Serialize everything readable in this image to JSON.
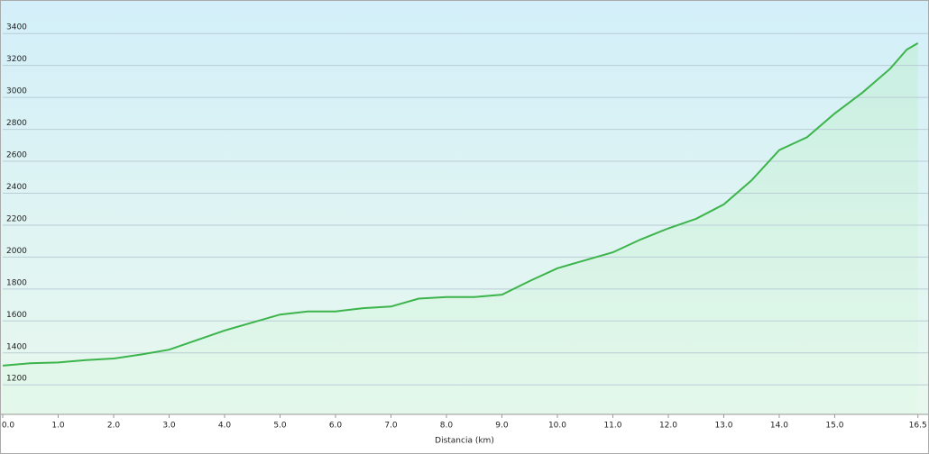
{
  "chart_data": {
    "type": "area",
    "x_label": "Distancia  (km)",
    "x": [
      0,
      0.5,
      1.0,
      1.5,
      2.0,
      2.5,
      3.0,
      3.5,
      4.0,
      4.5,
      5.0,
      5.5,
      6.0,
      6.5,
      7.0,
      7.5,
      8.0,
      8.5,
      9.0,
      9.5,
      10.0,
      10.5,
      11.0,
      11.5,
      12.0,
      12.5,
      13.0,
      13.5,
      14.0,
      14.5,
      15.0,
      15.5,
      16.0,
      16.3,
      16.5
    ],
    "series": [
      {
        "color": "#3cb44b",
        "values": [
          1320,
          1335,
          1340,
          1355,
          1365,
          1390,
          1420,
          1480,
          1540,
          1590,
          1640,
          1660,
          1660,
          1680,
          1690,
          1740,
          1750,
          1750,
          1765,
          1850,
          1930,
          1980,
          2030,
          2110,
          2180,
          2240,
          2330,
          2480,
          2670,
          2750,
          2900,
          3030,
          3180,
          3300,
          3340
        ]
      }
    ],
    "xlim": [
      0,
      16.7
    ],
    "ylim": [
      1015,
      3610
    ],
    "xticks": [
      {
        "value": 0,
        "label": "0.0"
      },
      {
        "value": 1,
        "label": "1.0"
      },
      {
        "value": 2,
        "label": "2.0"
      },
      {
        "value": 3,
        "label": "3.0"
      },
      {
        "value": 4,
        "label": "4.0"
      },
      {
        "value": 5,
        "label": "5.0"
      },
      {
        "value": 6,
        "label": "6.0"
      },
      {
        "value": 7,
        "label": "7.0"
      },
      {
        "value": 8,
        "label": "8.0"
      },
      {
        "value": 9,
        "label": "9.0"
      },
      {
        "value": 10,
        "label": "10.0"
      },
      {
        "value": 11,
        "label": "11.0"
      },
      {
        "value": 12,
        "label": "12.0"
      },
      {
        "value": 13,
        "label": "13.0"
      },
      {
        "value": 14,
        "label": "14.0"
      },
      {
        "value": 15,
        "label": "15.0"
      },
      16.5
    ],
    "yticks": [
      1200,
      1400,
      1600,
      1800,
      2000,
      2200,
      2400,
      2600,
      2800,
      3000,
      3200,
      3400
    ],
    "grid": true
  }
}
